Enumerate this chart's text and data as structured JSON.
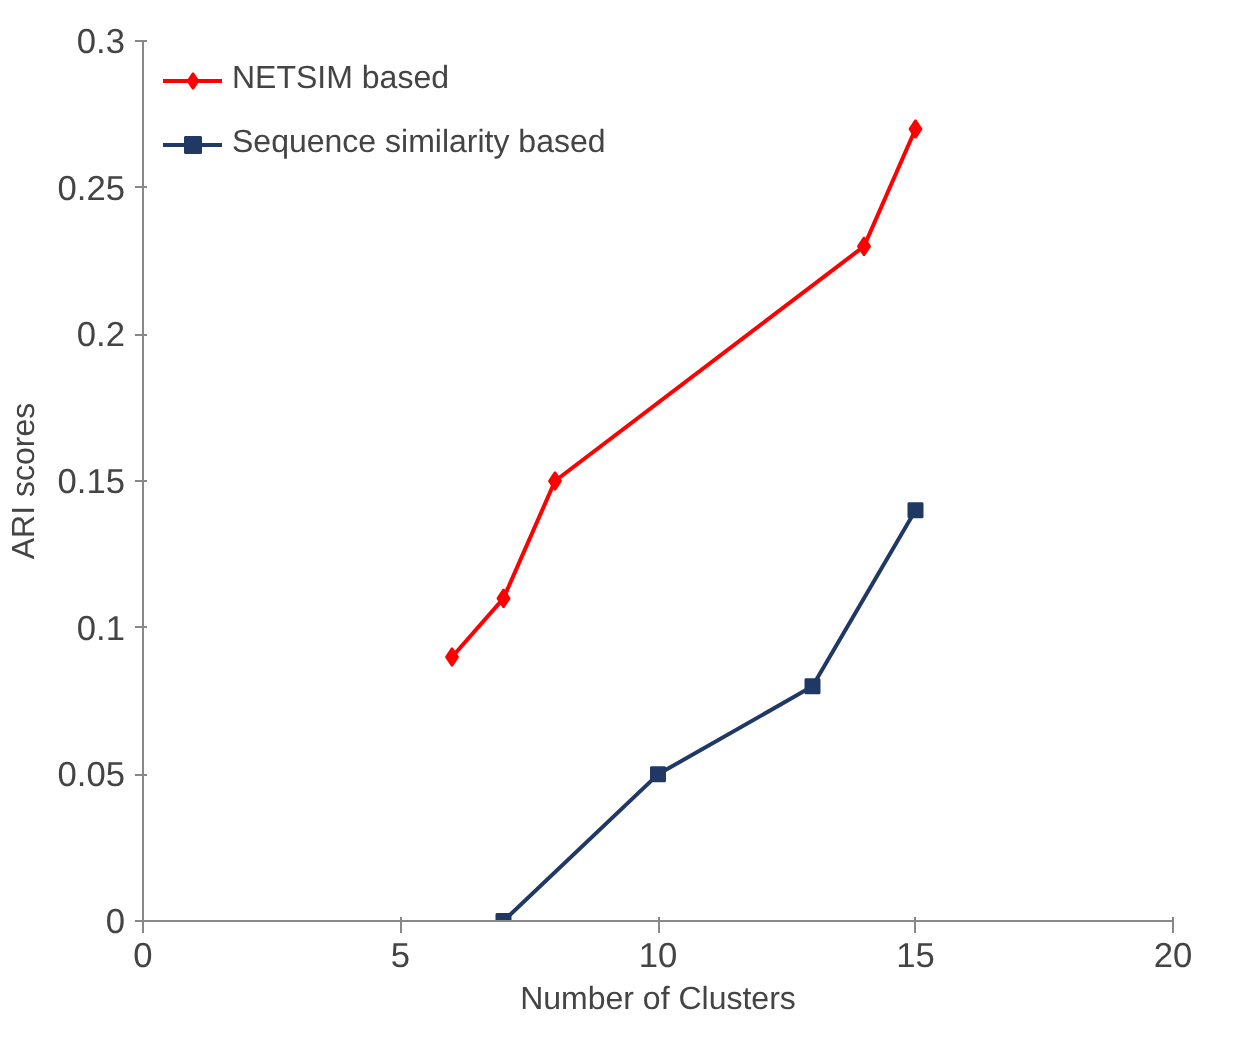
{
  "chart_data": {
    "type": "line",
    "xlabel": "Number of Clusters",
    "ylabel": "ARI scores",
    "xlim": [
      0,
      20
    ],
    "xticks": [
      0,
      5,
      10,
      15,
      20
    ],
    "ylim": [
      0,
      0.3
    ],
    "yticks": [
      0,
      {
        "value": 0.05,
        "label": "0.05"
      },
      {
        "value": 0.1,
        "label": "0.1"
      },
      {
        "value": 0.15,
        "label": "0.15"
      },
      {
        "value": 0.2,
        "label": "0.2"
      },
      {
        "value": 0.25,
        "label": "0.25"
      },
      {
        "value": 0.3,
        "label": "0.3"
      }
    ],
    "grid": false,
    "legend": "top left",
    "series": [
      {
        "name": "NETSIM based",
        "color": "#ff0000",
        "marker": "diamond",
        "x": [
          6,
          7,
          8,
          14,
          15
        ],
        "values": [
          0.09,
          0.11,
          0.15,
          0.23,
          0.27
        ]
      },
      {
        "name": "Sequence similarity based",
        "color": "#203864",
        "marker": "square",
        "x": [
          7,
          10,
          13,
          15
        ],
        "values": [
          0,
          0.05,
          0.08,
          0.14
        ]
      }
    ]
  }
}
